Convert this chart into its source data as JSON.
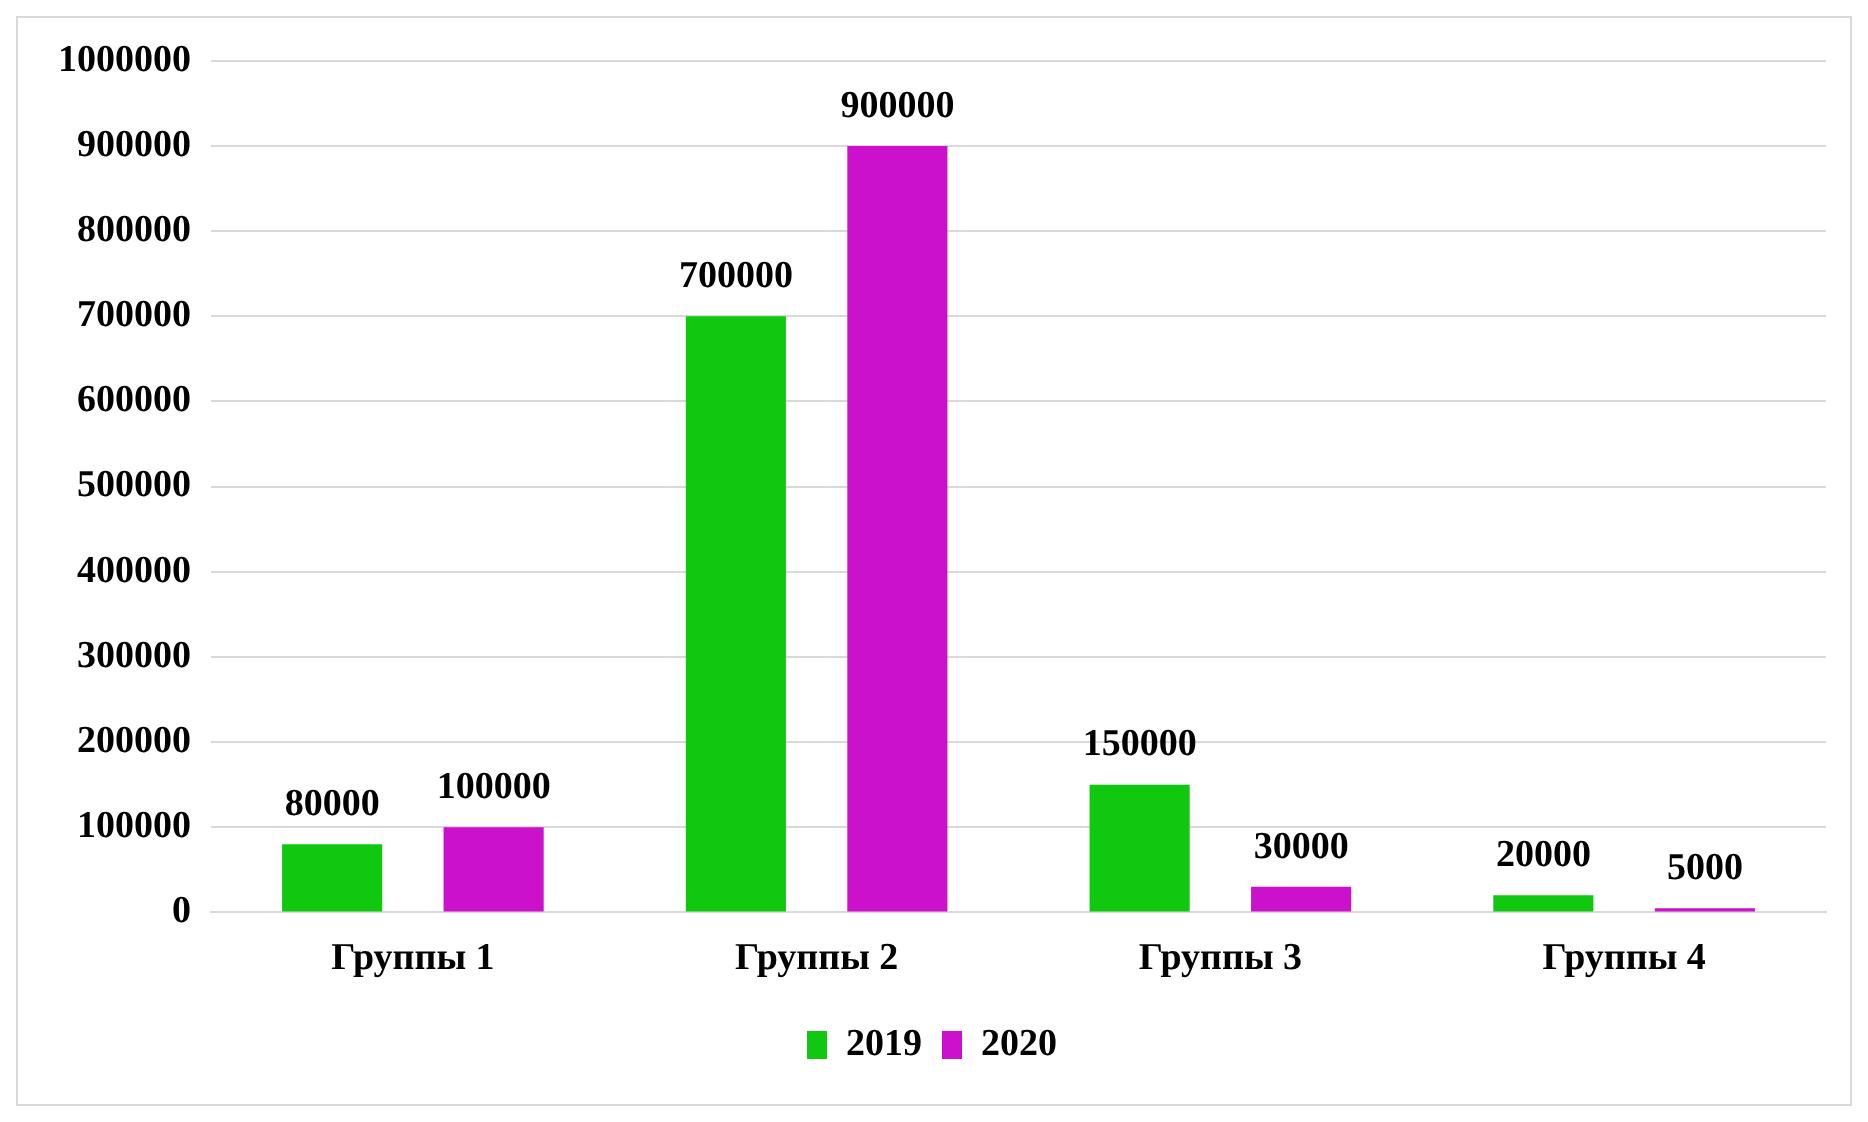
{
  "chart_data": {
    "type": "bar",
    "categories": [
      "Группы 1",
      "Группы 2",
      "Группы 3",
      "Группы 4"
    ],
    "series": [
      {
        "name": "2019",
        "color": "#11c811",
        "values": [
          80000,
          700000,
          150000,
          20000
        ]
      },
      {
        "name": "2020",
        "color": "#cc11cc",
        "values": [
          100000,
          900000,
          30000,
          5000
        ]
      }
    ],
    "ylim": [
      0,
      1000000
    ],
    "yticks": [
      0,
      100000,
      200000,
      300000,
      400000,
      500000,
      600000,
      700000,
      800000,
      900000,
      1000000
    ],
    "grid": "y",
    "legend": "bottom",
    "data_labels": true
  }
}
